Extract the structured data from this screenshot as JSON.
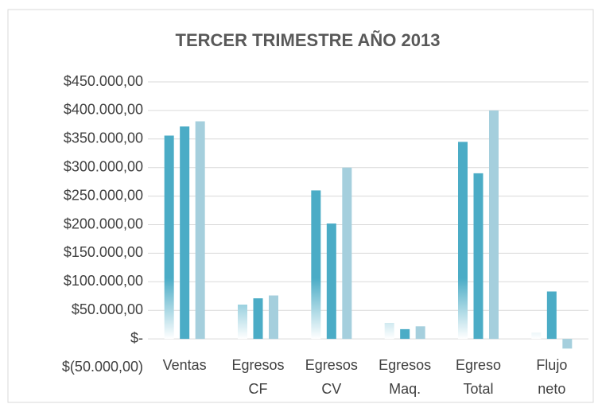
{
  "chart_data": {
    "type": "bar",
    "title": "TERCER TRIMESTRE AÑO 2013",
    "categories": [
      "Ventas",
      "Egresos CF",
      "Egresos CV",
      "Egresos Maq.",
      "Egreso Total",
      "Flujo neto"
    ],
    "series": [
      {
        "color": "#4bacc6",
        "gradient": true,
        "values": [
          356000,
          60000,
          260000,
          28000,
          345000,
          11000
        ]
      },
      {
        "color": "#4bacc6",
        "values": [
          372000,
          71000,
          202000,
          17000,
          290000,
          83000
        ]
      },
      {
        "color": "#a5cfdd",
        "values": [
          381000,
          76000,
          300000,
          22000,
          400000,
          -17000
        ]
      }
    ],
    "ylim": [
      -50000,
      450000
    ],
    "yticks": [
      {
        "value": -50000,
        "label": "$(50.000,00)"
      },
      {
        "value": 0,
        "label": "$-"
      },
      {
        "value": 50000,
        "label": "$50.000,00"
      },
      {
        "value": 100000,
        "label": "$100.000,00"
      },
      {
        "value": 150000,
        "label": "$150.000,00"
      },
      {
        "value": 200000,
        "label": "$200.000,00"
      },
      {
        "value": 250000,
        "label": "$250.000,00"
      },
      {
        "value": 300000,
        "label": "$300.000,00"
      },
      {
        "value": 350000,
        "label": "$350.000,00"
      },
      {
        "value": 400000,
        "label": "$400.000,00"
      },
      {
        "value": 450000,
        "label": "$450.000,00"
      }
    ],
    "grid": true
  }
}
